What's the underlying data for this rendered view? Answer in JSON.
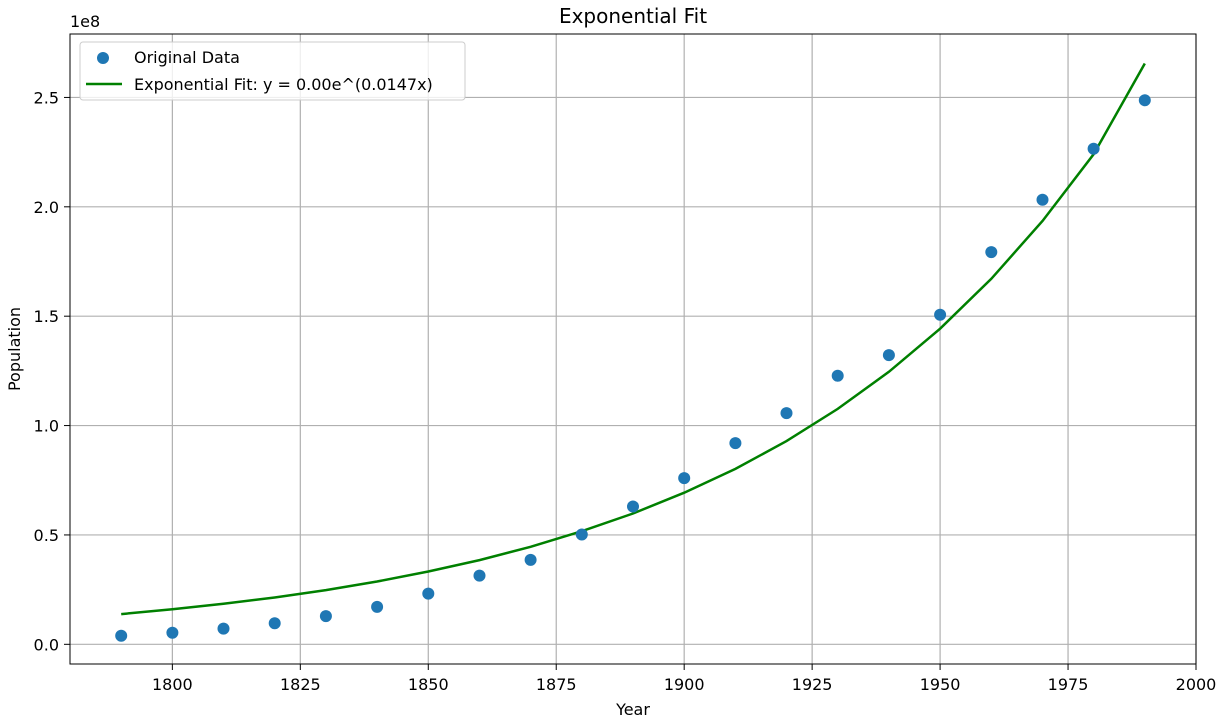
{
  "chart_data": {
    "type": "scatter",
    "title": "Exponential Fit",
    "xlabel": "Year",
    "ylabel": "Population",
    "y_offset_label": "1e8",
    "xlim": [
      1780,
      2000
    ],
    "ylim": [
      -0.09,
      2.79
    ],
    "y_unit_multiplier": 100000000,
    "xticks": [
      1800,
      1825,
      1850,
      1875,
      1900,
      1925,
      1950,
      1975,
      2000
    ],
    "xtick_labels": [
      "1800",
      "1825",
      "1850",
      "1875",
      "1900",
      "1925",
      "1950",
      "1975",
      "2000"
    ],
    "yticks": [
      0.0,
      0.5,
      1.0,
      1.5,
      2.0,
      2.5
    ],
    "ytick_labels": [
      "0.0",
      "0.5",
      "1.0",
      "1.5",
      "2.0",
      "2.5"
    ],
    "grid": true,
    "legend_position": "top-left",
    "series": [
      {
        "name": "Original Data",
        "kind": "scatter",
        "color": "#1f77b4",
        "x": [
          1790,
          1800,
          1810,
          1820,
          1830,
          1840,
          1850,
          1860,
          1870,
          1880,
          1890,
          1900,
          1910,
          1920,
          1930,
          1940,
          1950,
          1960,
          1970,
          1980,
          1990
        ],
        "y": [
          0.039,
          0.053,
          0.072,
          0.096,
          0.129,
          0.171,
          0.232,
          0.314,
          0.386,
          0.502,
          0.63,
          0.76,
          0.92,
          1.057,
          1.228,
          1.322,
          1.507,
          1.793,
          2.032,
          2.265,
          2.487
        ]
      },
      {
        "name": "Exponential Fit: y = 0.00e^(0.0147x)",
        "kind": "line",
        "color": "#008000",
        "x": [
          1790,
          1800,
          1810,
          1820,
          1830,
          1840,
          1850,
          1860,
          1870,
          1880,
          1890,
          1900,
          1910,
          1920,
          1930,
          1940,
          1950,
          1960,
          1970,
          1980,
          1990
        ],
        "y": [
          0.138,
          0.16,
          0.185,
          0.214,
          0.248,
          0.287,
          0.333,
          0.385,
          0.446,
          0.517,
          0.598,
          0.693,
          0.802,
          0.929,
          1.076,
          1.246,
          1.443,
          1.671,
          1.935,
          2.24,
          2.655
        ]
      }
    ]
  }
}
